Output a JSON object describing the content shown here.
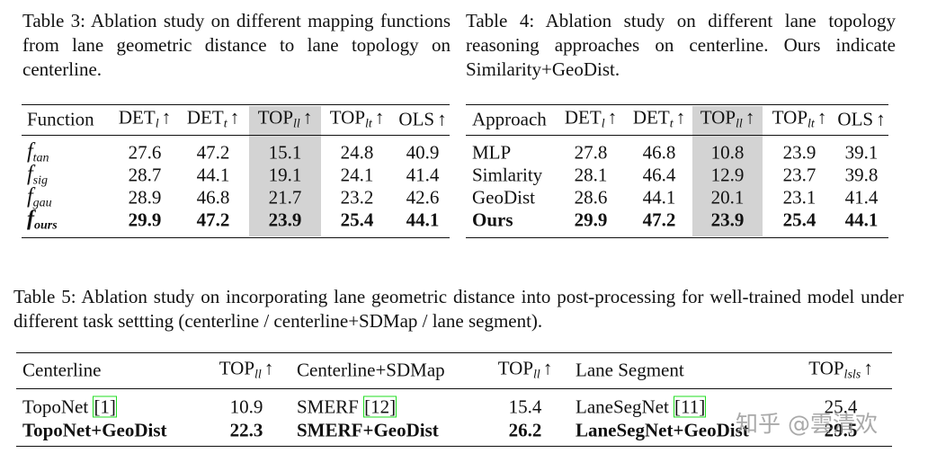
{
  "table3": {
    "caption": "Table 3: Ablation study on different mapping functions from lane geometric distance to lane topology on centerline.",
    "columns": [
      "Function",
      {
        "text": "DET",
        "sub": "l",
        "arrow": "↑"
      },
      {
        "text": "DET",
        "sub": "t",
        "arrow": "↑"
      },
      {
        "text": "TOP",
        "sub": "ll",
        "arrow": "↑"
      },
      {
        "text": "TOP",
        "sub": "lt",
        "arrow": "↑"
      },
      {
        "text": "OLS",
        "arrow": "↑"
      }
    ],
    "rows": [
      [
        {
          "text": "f",
          "sub": "tan"
        },
        27.6,
        47.2,
        15.1,
        24.8,
        40.9
      ],
      [
        {
          "text": "f",
          "sub": "sig"
        },
        28.7,
        44.1,
        19.1,
        24.1,
        41.4
      ],
      [
        {
          "text": "f",
          "sub": "gau"
        },
        28.9,
        46.8,
        21.7,
        23.2,
        42.6
      ],
      [
        {
          "text": "f",
          "sub": "ours"
        },
        29.9,
        47.2,
        23.9,
        25.4,
        44.1
      ]
    ]
  },
  "table4": {
    "caption": "Table 4: Ablation study on different lane topology reasoning approaches on centerline. Ours indicate Similarity+GeoDist.",
    "columns": [
      "Approach",
      {
        "text": "DET",
        "sub": "l",
        "arrow": "↑"
      },
      {
        "text": "DET",
        "sub": "t",
        "arrow": "↑"
      },
      {
        "text": "TOP",
        "sub": "ll",
        "arrow": "↑"
      },
      {
        "text": "TOP",
        "sub": "lt",
        "arrow": "↑"
      },
      {
        "text": "OLS",
        "arrow": "↑"
      }
    ],
    "rows": [
      [
        "MLP",
        27.8,
        46.8,
        10.8,
        23.9,
        39.1
      ],
      [
        "Simlarity",
        28.1,
        46.4,
        12.9,
        23.7,
        39.8
      ],
      [
        "GeoDist",
        28.6,
        44.1,
        20.1,
        23.1,
        41.4
      ],
      [
        "Ours",
        29.9,
        47.2,
        23.9,
        25.4,
        44.1
      ]
    ]
  },
  "table5": {
    "caption": "Table 5: Ablation study on incorporating lane geometric distance into post-processing for well-trained model under different task settting (centerline / centerline+SDMap / lane segment).",
    "columns": [
      "Centerline",
      {
        "text": "TOP",
        "sub": "ll",
        "arrow": "↑"
      },
      "Centerline+SDMap",
      {
        "text": "TOP",
        "sub": "ll",
        "arrow": "↑"
      },
      "Lane Segment",
      {
        "text": "TOP",
        "sub": "lsls",
        "arrow": "↑"
      }
    ],
    "rows": [
      [
        {
          "name": "TopoNet",
          "cite": "[1]"
        },
        10.9,
        {
          "name": "SMERF",
          "cite": "[12]"
        },
        15.4,
        {
          "name": "LaneSegNet",
          "cite": "[11]"
        },
        25.4
      ],
      [
        "TopoNet+GeoDist",
        22.3,
        "SMERF+GeoDist",
        26.2,
        "LaneSegNet+GeoDist",
        29.5
      ]
    ]
  },
  "watermark": "知乎 @雲清欢"
}
